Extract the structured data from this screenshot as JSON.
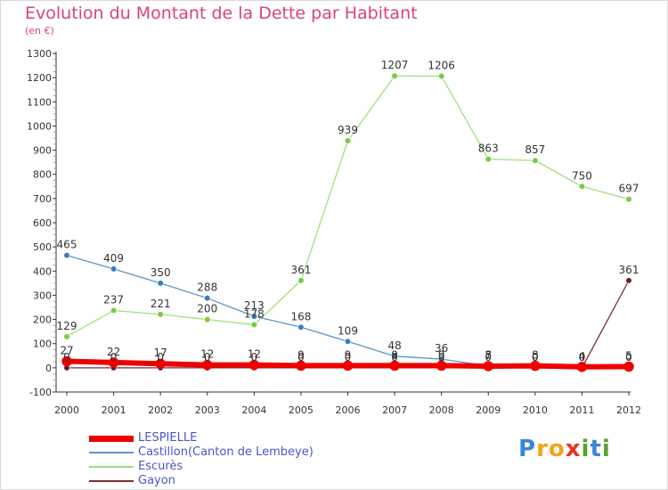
{
  "title": "Evolution du Montant de la Dette par Habitant",
  "subtitle": "(en €)",
  "logo_text": "Proxiti",
  "chart_data": {
    "type": "line",
    "x": [
      "2000",
      "2001",
      "2002",
      "2003",
      "2004",
      "2005",
      "2006",
      "2007",
      "2008",
      "2009",
      "2010",
      "2011",
      "2012"
    ],
    "ylim": [
      -100,
      1300
    ],
    "yticks": [
      -100,
      0,
      100,
      200,
      300,
      400,
      500,
      600,
      700,
      800,
      900,
      1000,
      1100,
      1200,
      1300
    ],
    "grid": false,
    "legend_position": "bottom-left",
    "series": [
      {
        "name": "Castillon(Canton de Lembeye)",
        "color": "#5b95c8",
        "marker": "#3a7cc0",
        "values": [
          465,
          409,
          350,
          288,
          213,
          168,
          109,
          48,
          36,
          8,
          0,
          0,
          0
        ],
        "labels": [
          "465",
          "409",
          "350",
          "288",
          "213",
          "168",
          "109",
          "48",
          "36",
          "8",
          "0",
          "0",
          "0"
        ]
      },
      {
        "name": "Escurès",
        "color": "#9ee07a",
        "marker": "#77cc44",
        "values": [
          129,
          237,
          221,
          200,
          178,
          361,
          939,
          1207,
          1206,
          863,
          857,
          750,
          697
        ],
        "labels": [
          "129",
          "237",
          "221",
          "200",
          "178",
          "361",
          "939",
          "1207",
          "1206",
          "863",
          "857",
          "750",
          "697"
        ]
      },
      {
        "name": "Gayon",
        "color": "#7a2e35",
        "marker": "#6b1e22",
        "values": [
          0,
          0,
          0,
          0,
          0,
          0,
          0,
          0,
          0,
          0,
          0,
          0,
          361
        ],
        "labels": [
          "0",
          "0",
          "0",
          "0",
          "0",
          "0",
          "0",
          "0",
          "0",
          "0",
          "0",
          "0",
          "361"
        ]
      },
      {
        "name": "LESPIELLE",
        "color": "#ee0000",
        "marker": "#ee0000",
        "values": [
          27,
          22,
          17,
          12,
          12,
          9,
          9,
          9,
          9,
          7,
          8,
          4,
          5
        ],
        "labels": [
          "27",
          "22",
          "17",
          "12",
          "12",
          "9",
          "9",
          "9",
          "9",
          "7",
          "8",
          "4",
          "5"
        ]
      }
    ],
    "legend_order": [
      "LESPIELLE",
      "Castillon(Canton de Lembeye)",
      "Escurès",
      "Gayon"
    ]
  }
}
